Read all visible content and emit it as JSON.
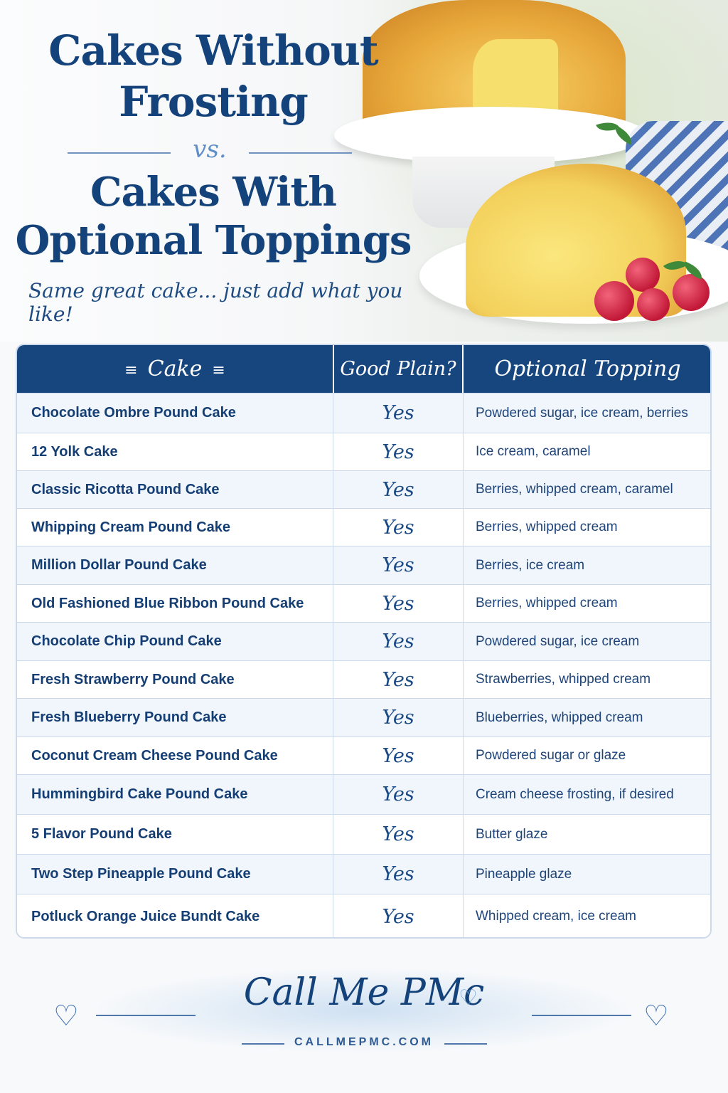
{
  "header": {
    "title_line1": "Cakes Without",
    "title_line2": "Frosting",
    "versus": "vs.",
    "title_line3": "Cakes With",
    "title_line4": "Optional Toppings",
    "tagline": "Same great cake... just add what you like!"
  },
  "table": {
    "columns": [
      "Cake",
      "Good Plain?",
      "Optional Topping"
    ],
    "rows": [
      {
        "cake": "Chocolate Ombre Pound Cake",
        "plain": "Yes",
        "topping": "Powdered sugar, ice cream, berries"
      },
      {
        "cake": "12 Yolk Cake",
        "plain": "Yes",
        "topping": "Ice cream, caramel"
      },
      {
        "cake": "Classic Ricotta Pound Cake",
        "plain": "Yes",
        "topping": "Berries, whipped cream, caramel"
      },
      {
        "cake": "Whipping Cream Pound Cake",
        "plain": "Yes",
        "topping": "Berries, whipped cream"
      },
      {
        "cake": "Million Dollar Pound Cake",
        "plain": "Yes",
        "topping": "Berries, ice cream"
      },
      {
        "cake": "Old Fashioned Blue Ribbon Pound Cake",
        "plain": "Yes",
        "topping": "Berries, whipped cream"
      },
      {
        "cake": "Chocolate Chip Pound Cake",
        "plain": "Yes",
        "topping": "Powdered sugar, ice cream"
      },
      {
        "cake": "Fresh Strawberry Pound Cake",
        "plain": "Yes",
        "topping": "Strawberries, whipped cream"
      },
      {
        "cake": "Fresh Blueberry Pound Cake",
        "plain": "Yes",
        "topping": "Blueberries, whipped cream"
      },
      {
        "cake": "Coconut Cream Cheese Pound Cake",
        "plain": "Yes",
        "topping": "Powdered sugar or glaze"
      },
      {
        "cake": "Hummingbird Cake Pound Cake",
        "plain": "Yes",
        "topping": "Cream cheese frosting, if desired"
      },
      {
        "cake": "5 Flavor Pound Cake",
        "plain": "Yes",
        "topping": "Butter glaze"
      },
      {
        "cake": "Two Step Pineapple Pound Cake",
        "plain": "Yes",
        "topping": "Pineapple glaze"
      },
      {
        "cake": "Potluck Orange Juice Bundt Cake",
        "plain": "Yes",
        "topping": "Whipped cream, ice cream"
      }
    ]
  },
  "footer": {
    "brand": "Call Me PMc",
    "url": "CALLMEPMC.COM"
  },
  "colors": {
    "primary": "#17467f",
    "accent": "#5f8fc7",
    "row_alt": "#f1f6fc"
  },
  "icons": [
    "heart-outline-icon",
    "sparkle-icon"
  ]
}
